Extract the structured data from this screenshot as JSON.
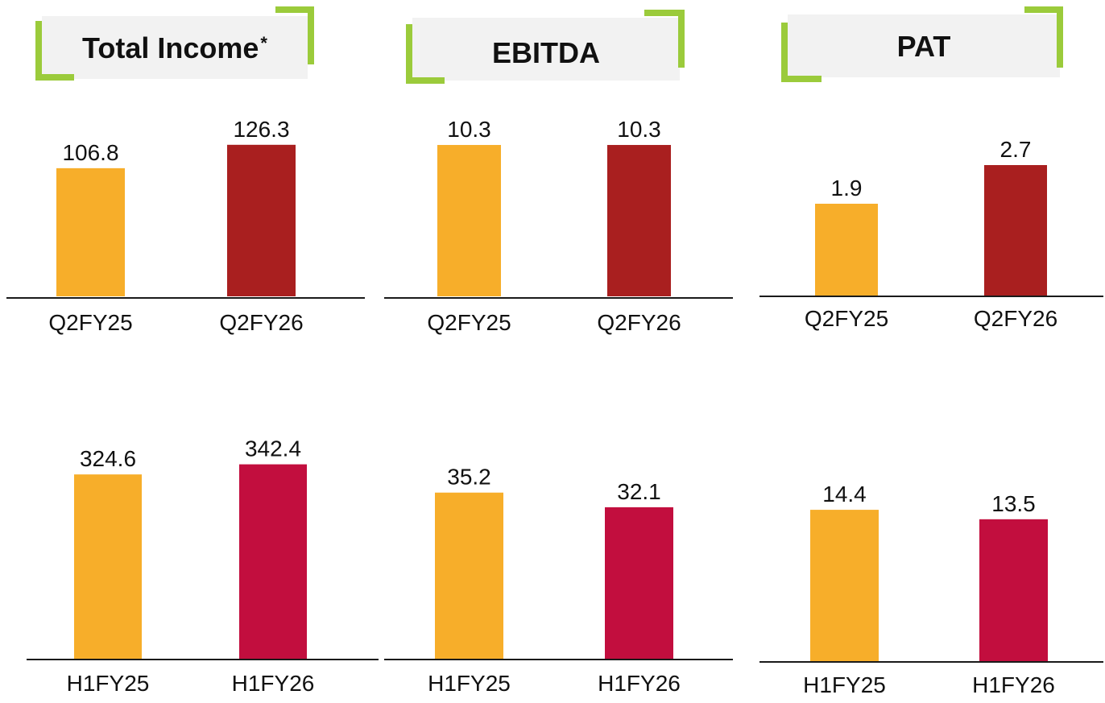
{
  "headers": [
    {
      "title": "Total Income",
      "marker": "*"
    },
    {
      "title": "EBITDA",
      "marker": ""
    },
    {
      "title": "PAT",
      "marker": ""
    }
  ],
  "colors": {
    "prior": "#f7ae2a",
    "current_q": "#a91f1f",
    "current_h": "#c20e3e",
    "accent": "#9bcb3b"
  },
  "chart_data": [
    {
      "type": "bar",
      "metric": "Total Income",
      "categories": [
        "Q2FY25",
        "Q2FY26"
      ],
      "values": [
        106.8,
        126.3
      ]
    },
    {
      "type": "bar",
      "metric": "EBITDA",
      "categories": [
        "Q2FY25",
        "Q2FY26"
      ],
      "values": [
        10.3,
        10.3
      ]
    },
    {
      "type": "bar",
      "metric": "PAT",
      "categories": [
        "Q2FY25",
        "Q2FY26"
      ],
      "values": [
        1.9,
        2.7
      ]
    },
    {
      "type": "bar",
      "metric": "Total Income",
      "categories": [
        "H1FY25",
        "H1FY26"
      ],
      "values": [
        324.6,
        342.4
      ]
    },
    {
      "type": "bar",
      "metric": "EBITDA",
      "categories": [
        "H1FY25",
        "H1FY26"
      ],
      "values": [
        35.2,
        32.1
      ]
    },
    {
      "type": "bar",
      "metric": "PAT",
      "categories": [
        "H1FY25",
        "H1FY26"
      ],
      "values": [
        14.4,
        13.5
      ]
    }
  ]
}
